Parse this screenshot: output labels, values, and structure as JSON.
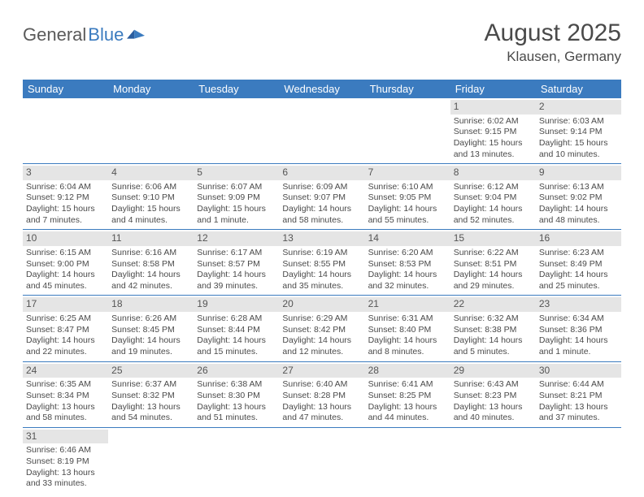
{
  "logo": {
    "text1": "General",
    "text2": "Blue"
  },
  "title": "August 2025",
  "location": "Klausen, Germany",
  "colors": {
    "header_bg": "#3b7bbf",
    "header_fg": "#ffffff",
    "daynum_bg": "#e5e5e5",
    "text": "#4a4a4a",
    "rule": "#3b7bbf",
    "page_bg": "#ffffff",
    "logo_gray": "#5a5a5a",
    "logo_blue": "#3b7bbf"
  },
  "weekdays": [
    "Sunday",
    "Monday",
    "Tuesday",
    "Wednesday",
    "Thursday",
    "Friday",
    "Saturday"
  ],
  "weeks": [
    [
      null,
      null,
      null,
      null,
      null,
      {
        "n": "1",
        "sr": "6:02 AM",
        "ss": "9:15 PM",
        "dl": "15 hours and 13 minutes."
      },
      {
        "n": "2",
        "sr": "6:03 AM",
        "ss": "9:14 PM",
        "dl": "15 hours and 10 minutes."
      }
    ],
    [
      {
        "n": "3",
        "sr": "6:04 AM",
        "ss": "9:12 PM",
        "dl": "15 hours and 7 minutes."
      },
      {
        "n": "4",
        "sr": "6:06 AM",
        "ss": "9:10 PM",
        "dl": "15 hours and 4 minutes."
      },
      {
        "n": "5",
        "sr": "6:07 AM",
        "ss": "9:09 PM",
        "dl": "15 hours and 1 minute."
      },
      {
        "n": "6",
        "sr": "6:09 AM",
        "ss": "9:07 PM",
        "dl": "14 hours and 58 minutes."
      },
      {
        "n": "7",
        "sr": "6:10 AM",
        "ss": "9:05 PM",
        "dl": "14 hours and 55 minutes."
      },
      {
        "n": "8",
        "sr": "6:12 AM",
        "ss": "9:04 PM",
        "dl": "14 hours and 52 minutes."
      },
      {
        "n": "9",
        "sr": "6:13 AM",
        "ss": "9:02 PM",
        "dl": "14 hours and 48 minutes."
      }
    ],
    [
      {
        "n": "10",
        "sr": "6:15 AM",
        "ss": "9:00 PM",
        "dl": "14 hours and 45 minutes."
      },
      {
        "n": "11",
        "sr": "6:16 AM",
        "ss": "8:58 PM",
        "dl": "14 hours and 42 minutes."
      },
      {
        "n": "12",
        "sr": "6:17 AM",
        "ss": "8:57 PM",
        "dl": "14 hours and 39 minutes."
      },
      {
        "n": "13",
        "sr": "6:19 AM",
        "ss": "8:55 PM",
        "dl": "14 hours and 35 minutes."
      },
      {
        "n": "14",
        "sr": "6:20 AM",
        "ss": "8:53 PM",
        "dl": "14 hours and 32 minutes."
      },
      {
        "n": "15",
        "sr": "6:22 AM",
        "ss": "8:51 PM",
        "dl": "14 hours and 29 minutes."
      },
      {
        "n": "16",
        "sr": "6:23 AM",
        "ss": "8:49 PM",
        "dl": "14 hours and 25 minutes."
      }
    ],
    [
      {
        "n": "17",
        "sr": "6:25 AM",
        "ss": "8:47 PM",
        "dl": "14 hours and 22 minutes."
      },
      {
        "n": "18",
        "sr": "6:26 AM",
        "ss": "8:45 PM",
        "dl": "14 hours and 19 minutes."
      },
      {
        "n": "19",
        "sr": "6:28 AM",
        "ss": "8:44 PM",
        "dl": "14 hours and 15 minutes."
      },
      {
        "n": "20",
        "sr": "6:29 AM",
        "ss": "8:42 PM",
        "dl": "14 hours and 12 minutes."
      },
      {
        "n": "21",
        "sr": "6:31 AM",
        "ss": "8:40 PM",
        "dl": "14 hours and 8 minutes."
      },
      {
        "n": "22",
        "sr": "6:32 AM",
        "ss": "8:38 PM",
        "dl": "14 hours and 5 minutes."
      },
      {
        "n": "23",
        "sr": "6:34 AM",
        "ss": "8:36 PM",
        "dl": "14 hours and 1 minute."
      }
    ],
    [
      {
        "n": "24",
        "sr": "6:35 AM",
        "ss": "8:34 PM",
        "dl": "13 hours and 58 minutes."
      },
      {
        "n": "25",
        "sr": "6:37 AM",
        "ss": "8:32 PM",
        "dl": "13 hours and 54 minutes."
      },
      {
        "n": "26",
        "sr": "6:38 AM",
        "ss": "8:30 PM",
        "dl": "13 hours and 51 minutes."
      },
      {
        "n": "27",
        "sr": "6:40 AM",
        "ss": "8:28 PM",
        "dl": "13 hours and 47 minutes."
      },
      {
        "n": "28",
        "sr": "6:41 AM",
        "ss": "8:25 PM",
        "dl": "13 hours and 44 minutes."
      },
      {
        "n": "29",
        "sr": "6:43 AM",
        "ss": "8:23 PM",
        "dl": "13 hours and 40 minutes."
      },
      {
        "n": "30",
        "sr": "6:44 AM",
        "ss": "8:21 PM",
        "dl": "13 hours and 37 minutes."
      }
    ],
    [
      {
        "n": "31",
        "sr": "6:46 AM",
        "ss": "8:19 PM",
        "dl": "13 hours and 33 minutes."
      },
      null,
      null,
      null,
      null,
      null,
      null
    ]
  ],
  "labels": {
    "sunrise": "Sunrise:",
    "sunset": "Sunset:",
    "daylight": "Daylight:"
  }
}
